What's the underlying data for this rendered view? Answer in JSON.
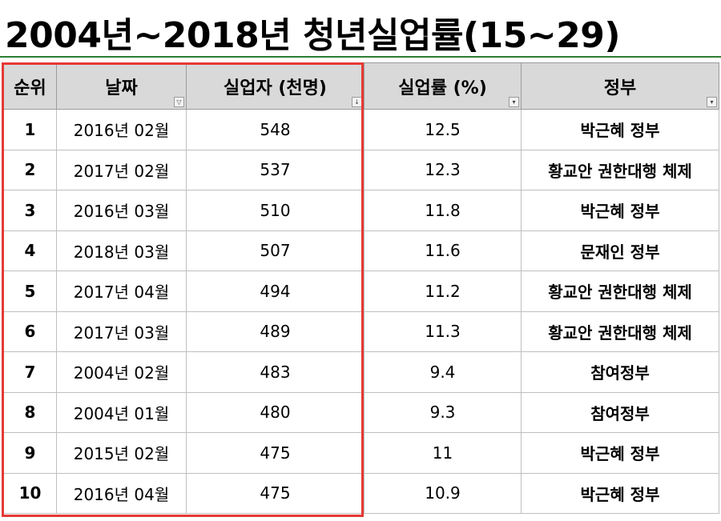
{
  "title": "2004년~2018년 청년실업률(15~29)",
  "colors": {
    "highlight": "#e53935",
    "header_bg": "#d9d9d9",
    "accent_line": "#2e7d32"
  },
  "headers": {
    "rank": "순위",
    "date": "날짜",
    "unemployed": "실업자 (천명)",
    "rate": "실업률 (%)",
    "gov": "정부"
  },
  "filter_icons": {
    "date": "filter-funnel-icon",
    "unemployed": "sort-descending-icon",
    "rate": "dropdown-arrow-icon",
    "gov": "dropdown-arrow-icon"
  },
  "rows": [
    {
      "rank": "1",
      "date": "2016년 02월",
      "unemployed": "548",
      "rate": "12.5",
      "gov": "박근혜 정부"
    },
    {
      "rank": "2",
      "date": "2017년 02월",
      "unemployed": "537",
      "rate": "12.3",
      "gov": "황교안 권한대행 체제"
    },
    {
      "rank": "3",
      "date": "2016년 03월",
      "unemployed": "510",
      "rate": "11.8",
      "gov": "박근혜 정부"
    },
    {
      "rank": "4",
      "date": "2018년 03월",
      "unemployed": "507",
      "rate": "11.6",
      "gov": "문재인 정부"
    },
    {
      "rank": "5",
      "date": "2017년 04월",
      "unemployed": "494",
      "rate": "11.2",
      "gov": "황교안 권한대행 체제"
    },
    {
      "rank": "6",
      "date": "2017년 03월",
      "unemployed": "489",
      "rate": "11.3",
      "gov": "황교안 권한대행 체제"
    },
    {
      "rank": "7",
      "date": "2004년 02월",
      "unemployed": "483",
      "rate": "9.4",
      "gov": "참여정부"
    },
    {
      "rank": "8",
      "date": "2004년 01월",
      "unemployed": "480",
      "rate": "9.3",
      "gov": "참여정부"
    },
    {
      "rank": "9",
      "date": "2015년 02월",
      "unemployed": "475",
      "rate": "11",
      "gov": "박근혜 정부"
    },
    {
      "rank": "10",
      "date": "2016년 04월",
      "unemployed": "475",
      "rate": "10.9",
      "gov": "박근혜 정부"
    }
  ]
}
